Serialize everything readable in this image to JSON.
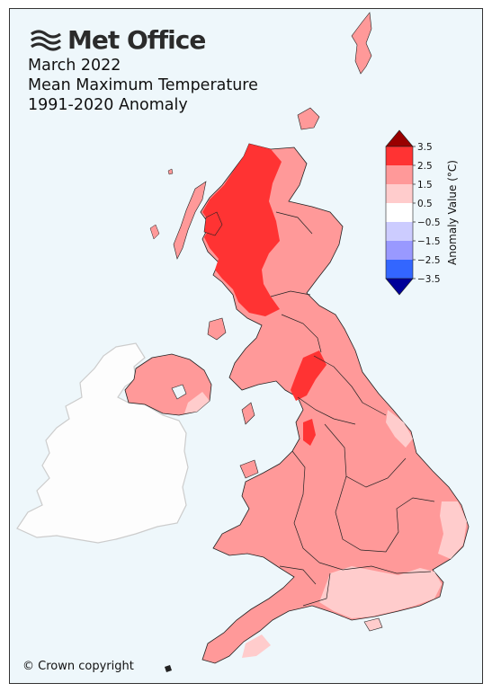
{
  "brand": {
    "name": "Met Office"
  },
  "title": {
    "line1": "March 2022",
    "line2": "Mean Maximum Temperature",
    "line3": "1991-2020 Anomaly"
  },
  "copyright": "© Crown copyright",
  "colorbar": {
    "label": "Anomaly Value (°C)",
    "ticks": [
      "3.5",
      "2.5",
      "1.5",
      "0.5",
      "−0.5",
      "−1.5",
      "−2.5",
      "−3.5"
    ],
    "bins": [
      {
        "min": 2.5,
        "max": 3.5,
        "color": "#ff3333"
      },
      {
        "min": 1.5,
        "max": 2.5,
        "color": "#ff9999"
      },
      {
        "min": 0.5,
        "max": 1.5,
        "color": "#ffcccc"
      },
      {
        "min": -0.5,
        "max": 0.5,
        "color": "#ffffff"
      },
      {
        "min": -1.5,
        "max": -0.5,
        "color": "#ccccff"
      },
      {
        "min": -2.5,
        "max": -1.5,
        "color": "#9999ff"
      },
      {
        "min": -3.5,
        "max": -2.5,
        "color": "#3366ff"
      }
    ],
    "over_color": "#990000",
    "under_color": "#000099"
  },
  "colors": {
    "sea": "#eef7fb",
    "ireland": "#fdfdfd",
    "anomaly_high": "#ff3333",
    "anomaly_mid": "#ff9999",
    "anomaly_low": "#ffcccc"
  }
}
